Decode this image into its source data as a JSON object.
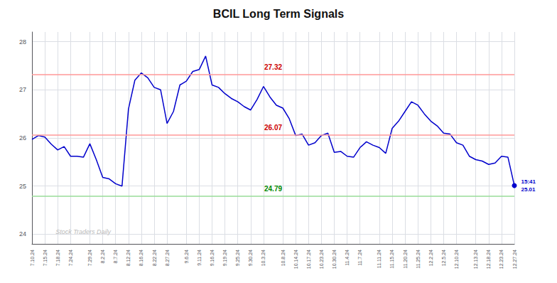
{
  "chart_data": {
    "type": "line",
    "title": "BCIL Long Term Signals",
    "categories": [
      "7.10.24",
      null,
      "7.15.24",
      null,
      "7.18.24",
      null,
      "7.24.24",
      null,
      null,
      "7.29.24",
      null,
      "8.2.24",
      null,
      "8.7.24",
      null,
      "8.12.24",
      null,
      "8.16.24",
      null,
      "8.22.24",
      null,
      "8.27.24",
      null,
      null,
      "9.6.24",
      null,
      "9.11.24",
      null,
      "9.16.24",
      null,
      "9.19.24",
      null,
      "9.25.24",
      null,
      "9.30.24",
      null,
      "10.3.24",
      null,
      null,
      "10.8.24",
      null,
      "10.14.24",
      null,
      "10.17.24",
      null,
      "10.23.24",
      null,
      "10.30.24",
      null,
      "11.4.24",
      null,
      "11.7.24",
      null,
      null,
      "11.11.24",
      null,
      "11.15.24",
      null,
      "11.20.24",
      null,
      "11.25.24",
      null,
      "12.2.24",
      null,
      "12.5.24",
      null,
      "12.10.24",
      null,
      null,
      "12.13.24",
      null,
      "12.18.24",
      null,
      "12.23.24",
      null,
      "12.27.24"
    ],
    "values": [
      25.97,
      26.05,
      26.02,
      25.87,
      25.75,
      25.82,
      25.62,
      25.62,
      25.6,
      25.88,
      25.55,
      25.18,
      25.15,
      25.05,
      25.0,
      26.6,
      27.2,
      27.35,
      27.25,
      27.05,
      27.0,
      26.3,
      26.55,
      27.1,
      27.18,
      27.38,
      27.42,
      27.7,
      27.1,
      27.05,
      26.92,
      26.82,
      26.75,
      26.65,
      26.58,
      26.8,
      27.07,
      26.85,
      26.68,
      26.62,
      26.4,
      26.05,
      26.08,
      25.85,
      25.9,
      26.05,
      26.1,
      25.7,
      25.72,
      25.62,
      25.6,
      25.8,
      25.92,
      25.85,
      25.8,
      25.68,
      26.2,
      26.35,
      26.55,
      26.75,
      26.68,
      26.5,
      26.35,
      26.25,
      26.1,
      26.08,
      25.9,
      25.85,
      25.62,
      25.55,
      25.52,
      25.45,
      25.48,
      25.62,
      25.6,
      25.01
    ],
    "color": "#0000cc",
    "ylim": [
      23.8,
      28.2
    ],
    "yticks": [
      24,
      25,
      26,
      27,
      28
    ],
    "grid": true,
    "reference_lines": [
      {
        "value": 27.32,
        "label": "27.32",
        "color": "#ff9999",
        "label_color": "#cc0000"
      },
      {
        "value": 26.07,
        "label": "26.07",
        "color": "#ff9999",
        "label_color": "#cc0000"
      },
      {
        "value": 24.79,
        "label": "24.79",
        "color": "#99dd99",
        "label_color": "#008800"
      }
    ],
    "annotations": [
      {
        "text": "15:41\n25.01",
        "x": 75,
        "y": 25.01,
        "color": "#0000cc",
        "marker": "circle"
      },
      {
        "text": "Stock Traders Daily",
        "x": 3,
        "y": 24.05,
        "color": "#bbbbbb"
      }
    ]
  }
}
